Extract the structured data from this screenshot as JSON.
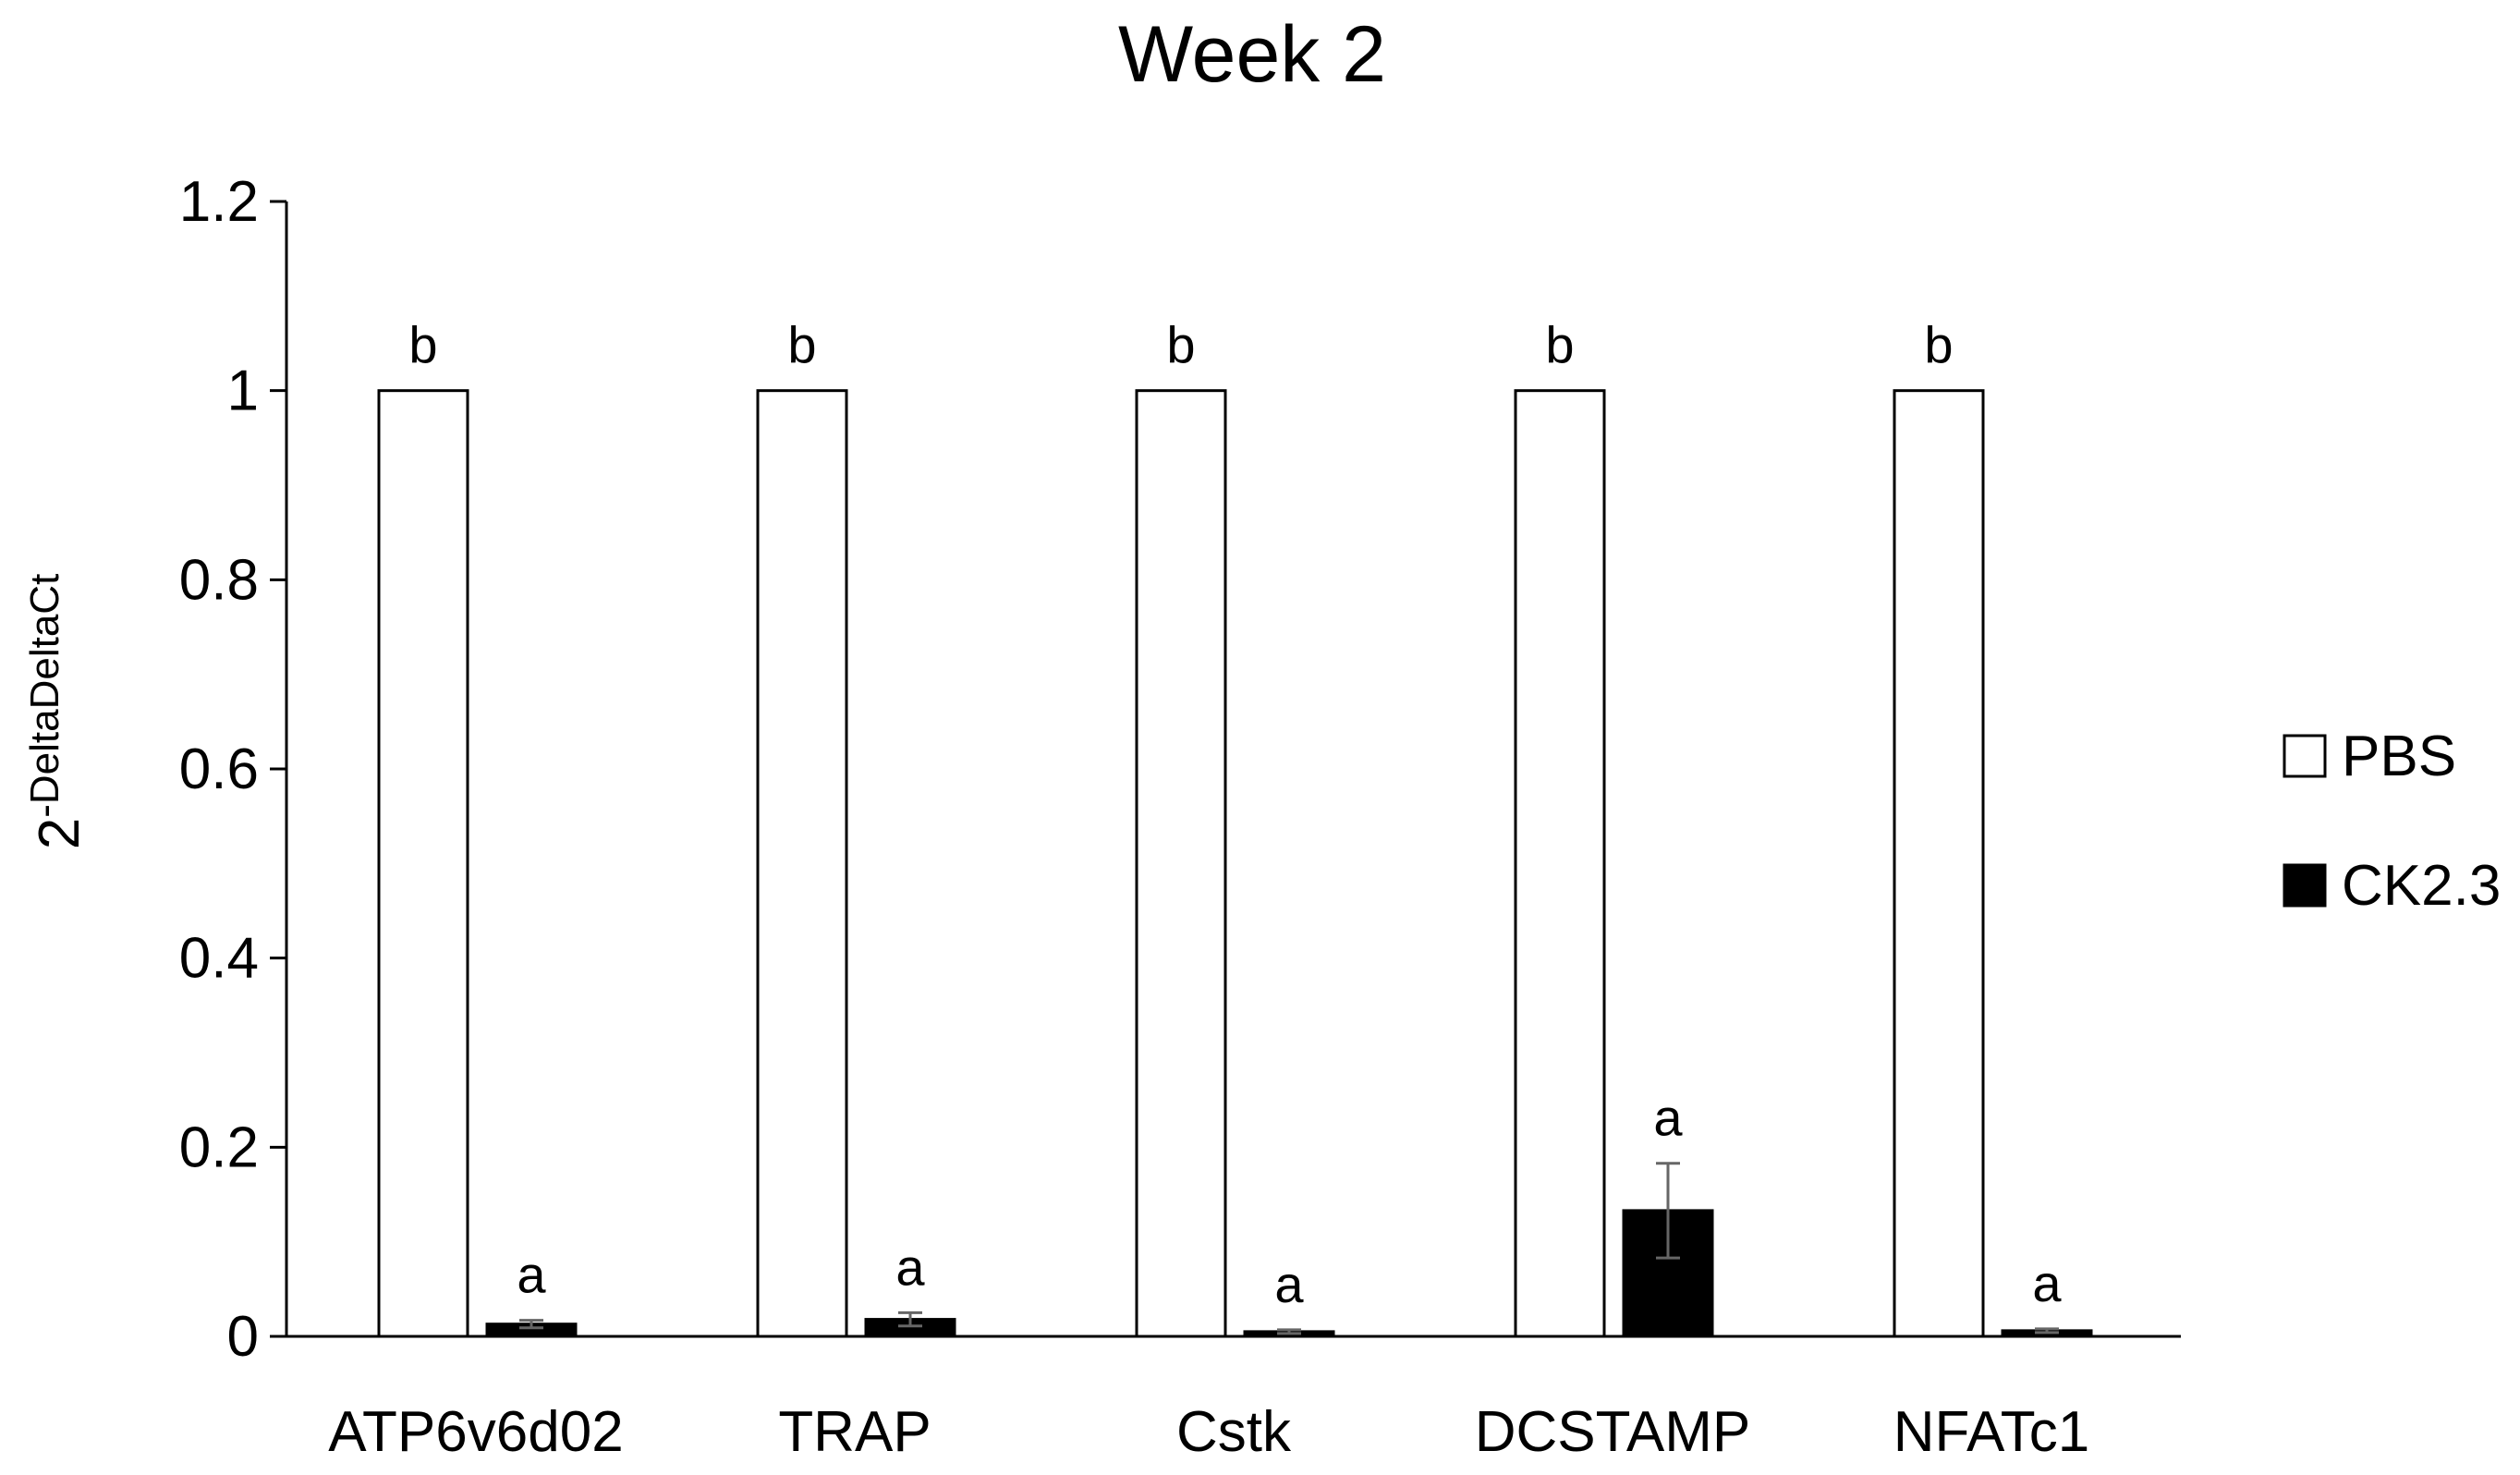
{
  "chart_data": {
    "type": "bar",
    "title": "Week 2",
    "xlabel": "",
    "ylabel": "2-DeltaDeltaCt",
    "ylabel_parts": {
      "base": "2",
      "exponent": "-DeltaDeltaCt"
    },
    "ylim": [
      0,
      1.2
    ],
    "yticks": [
      0,
      0.2,
      0.4,
      0.6,
      0.8,
      1,
      1.2
    ],
    "ytick_labels": [
      "0",
      "0.2",
      "0.4",
      "0.6",
      "0.8",
      "1",
      "1.2"
    ],
    "categories": [
      "ATP6v6d02",
      "TRAP",
      "Cstk",
      "DCSTAMP",
      "NFATc1"
    ],
    "legend_position": "right",
    "series": [
      {
        "name": "PBS",
        "fill": "#ffffff",
        "values": [
          1,
          1,
          1,
          1,
          1
        ],
        "errors": [
          0,
          0,
          0,
          0,
          0
        ],
        "letters": [
          "b",
          "b",
          "b",
          "b",
          "b"
        ]
      },
      {
        "name": "CK2.3",
        "fill": "#000000",
        "values": [
          0.013,
          0.018,
          0.005,
          0.133,
          0.006
        ],
        "errors": [
          0.004,
          0.007,
          0.002,
          0.05,
          0.002
        ],
        "letters": [
          "a",
          "a",
          "a",
          "a",
          "a"
        ]
      }
    ]
  }
}
